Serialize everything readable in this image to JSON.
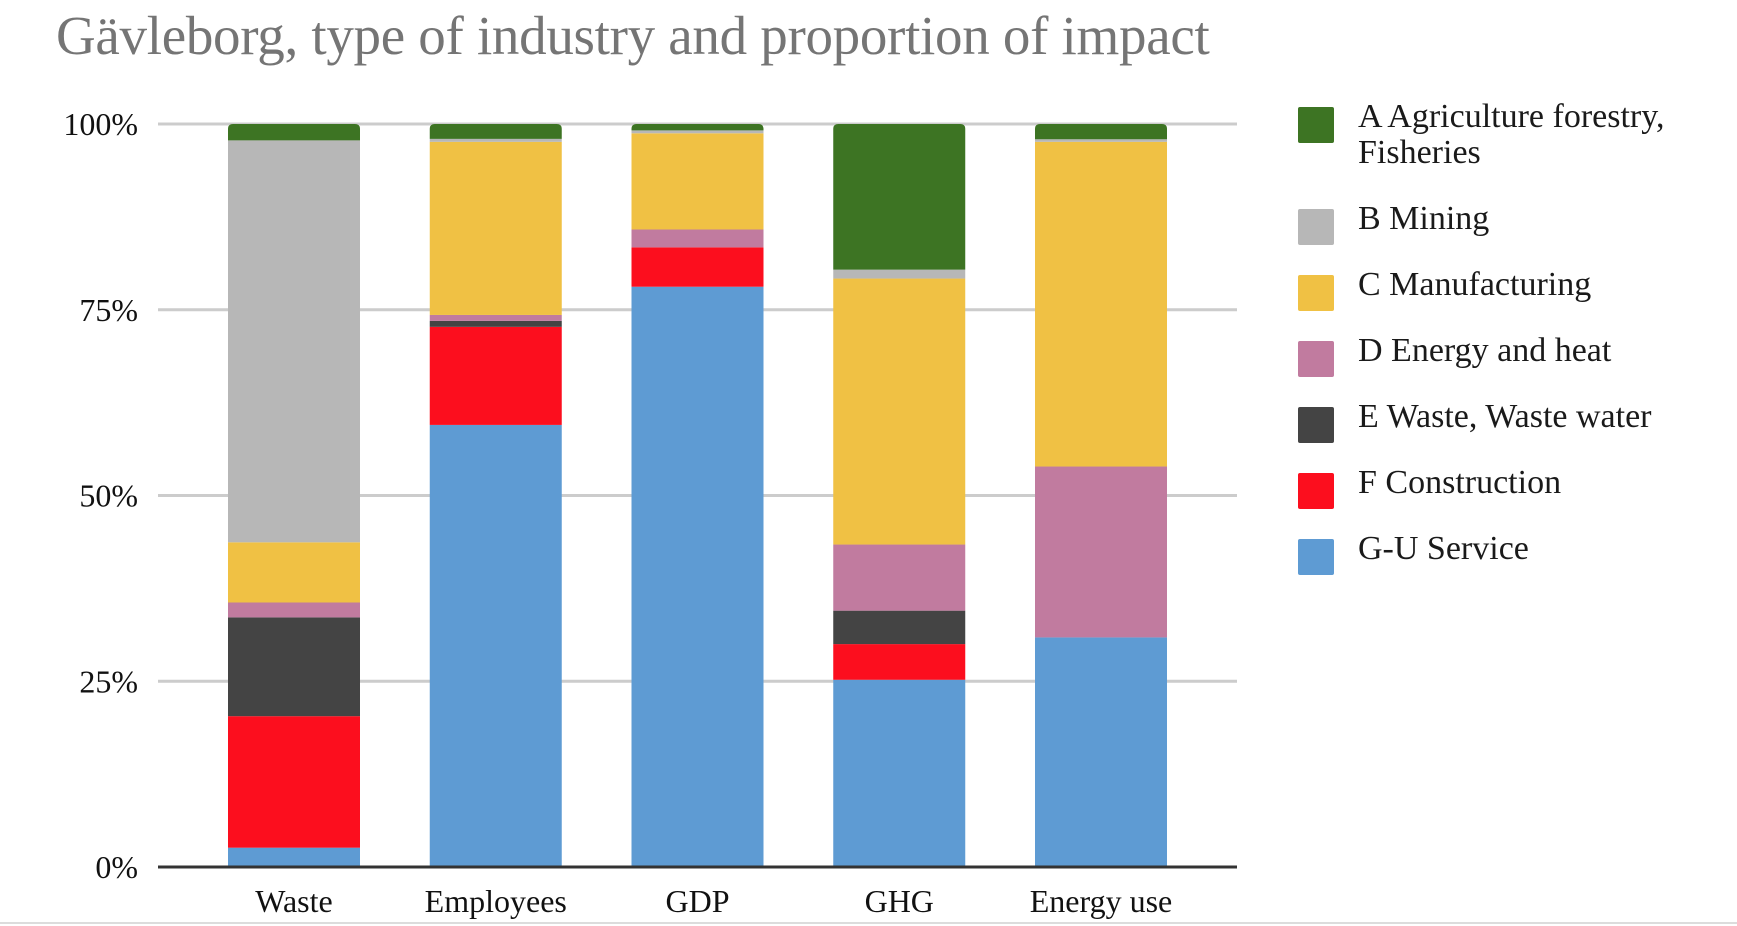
{
  "chart_data": {
    "type": "bar",
    "stacked": true,
    "percent_stacked": true,
    "title": "Gävleborg, type of industry and proportion of impact",
    "xlabel": "",
    "ylabel": "",
    "ylim": [
      0,
      100
    ],
    "yticks": [
      0,
      25,
      50,
      75,
      100
    ],
    "ytick_labels": [
      "0%",
      "25%",
      "50%",
      "75%",
      "100%"
    ],
    "grid": true,
    "legend_position": "right",
    "categories": [
      "Waste",
      "Employees",
      "GDP",
      "GHG",
      "Energy use"
    ],
    "series": [
      {
        "name": "G-U Service",
        "color": "#5e9bd3",
        "values": [
          2.6,
          59.5,
          78.1,
          25.2,
          30.9
        ]
      },
      {
        "name": "F Construction",
        "color": "#fc0e1e",
        "values": [
          17.7,
          13.2,
          5.3,
          4.8,
          0.0
        ]
      },
      {
        "name": "E Waste, Waste water",
        "color": "#444444",
        "values": [
          13.3,
          0.8,
          0.0,
          4.5,
          0.0
        ]
      },
      {
        "name": "D Energy and heat",
        "color": "#c17b9f",
        "values": [
          2.0,
          0.8,
          2.4,
          8.9,
          23.0
        ]
      },
      {
        "name": "C Manufacturing",
        "color": "#f0c144",
        "values": [
          8.1,
          23.3,
          12.95,
          35.8,
          43.7
        ]
      },
      {
        "name": "B Mining",
        "color": "#b7b7b7",
        "values": [
          54.1,
          0.4,
          0.4,
          1.2,
          0.35
        ]
      },
      {
        "name": "A Agriculture forestry, Fisheries",
        "color": "#3d7423",
        "values": [
          2.2,
          2.0,
          0.85,
          19.6,
          2.05
        ]
      }
    ],
    "legend": [
      {
        "label_lines": [
          "A Agriculture forestry,",
          "Fisheries"
        ],
        "color": "#3d7423"
      },
      {
        "label_lines": [
          "B Mining"
        ],
        "color": "#b7b7b7"
      },
      {
        "label_lines": [
          "C Manufacturing"
        ],
        "color": "#f0c144"
      },
      {
        "label_lines": [
          "D Energy and heat"
        ],
        "color": "#c17b9f"
      },
      {
        "label_lines": [
          "E Waste, Waste water"
        ],
        "color": "#444444"
      },
      {
        "label_lines": [
          "F Construction"
        ],
        "color": "#fc0e1e"
      },
      {
        "label_lines": [
          "G-U Service"
        ],
        "color": "#5e9bd3"
      }
    ]
  }
}
